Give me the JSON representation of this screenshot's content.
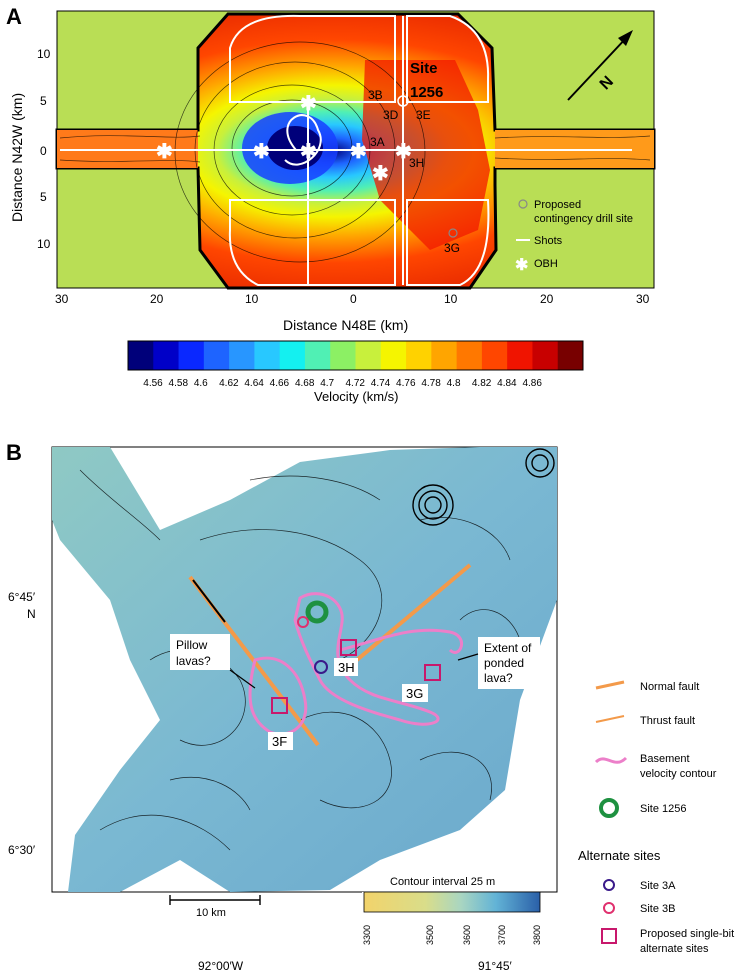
{
  "panelA": {
    "label": "A",
    "ylabel": "Distance N42W (km)",
    "xlabel": "Distance N48E (km)",
    "y_ticks": [
      "10",
      "5",
      "0",
      "5",
      "10"
    ],
    "x_ticks": [
      "30",
      "20",
      "10",
      "0",
      "10",
      "20",
      "30"
    ],
    "north": "N",
    "site_title": "Site",
    "site_number": "1256",
    "site_labels": [
      "3B",
      "3D",
      "3E",
      "3A",
      "3H",
      "3G"
    ],
    "legend": {
      "proposed": "Proposed",
      "proposed2": "contingency drill site",
      "shots": "Shots",
      "obh": "OBH"
    }
  },
  "colorbar": {
    "ticks": [
      "4.56",
      "4.58",
      "4.6",
      "4.62",
      "4.64",
      "4.66",
      "4.68",
      "4.7",
      "4.72",
      "4.74",
      "4.76",
      "4.78",
      "4.8",
      "4.82",
      "4.84",
      "4.86"
    ],
    "label": "Velocity (km/s)",
    "colors": [
      "#00007a",
      "#0000c8",
      "#0a28ff",
      "#1e64ff",
      "#2896ff",
      "#28c8ff",
      "#14f0f0",
      "#50f0b4",
      "#8cf064",
      "#c8f03c",
      "#f5f500",
      "#ffd200",
      "#ffa500",
      "#ff7800",
      "#ff4600",
      "#f01400",
      "#c80000",
      "#780000"
    ]
  },
  "panelB": {
    "label": "B",
    "lat_top": "6°45′",
    "lat_top_n": "N",
    "lat_bottom": "6°30′",
    "lon_left": "92°00′W",
    "lon_right": "91°45′",
    "annot_pillow": "Pillow",
    "annot_pillow2": "lavas?",
    "annot_extent": "Extent of",
    "annot_extent2": "ponded",
    "annot_extent3": "lava?",
    "sites": [
      "3H",
      "3G",
      "3F"
    ],
    "scale_label": "10 km",
    "contour_title": "Contour interval 25 m",
    "contour_ticks": [
      "3300",
      "3500",
      "3600",
      "3700",
      "3800"
    ]
  },
  "legendB": {
    "normal_fault": "Normal fault",
    "thrust_fault": "Thrust fault",
    "basement1": "Basement",
    "basement2": "velocity contour",
    "site1256": "Site 1256",
    "alternate_title": "Alternate sites",
    "site3a": "Site 3A",
    "site3b": "Site 3B",
    "proposed1": "Proposed single-bit",
    "proposed2": "alternate sites"
  }
}
